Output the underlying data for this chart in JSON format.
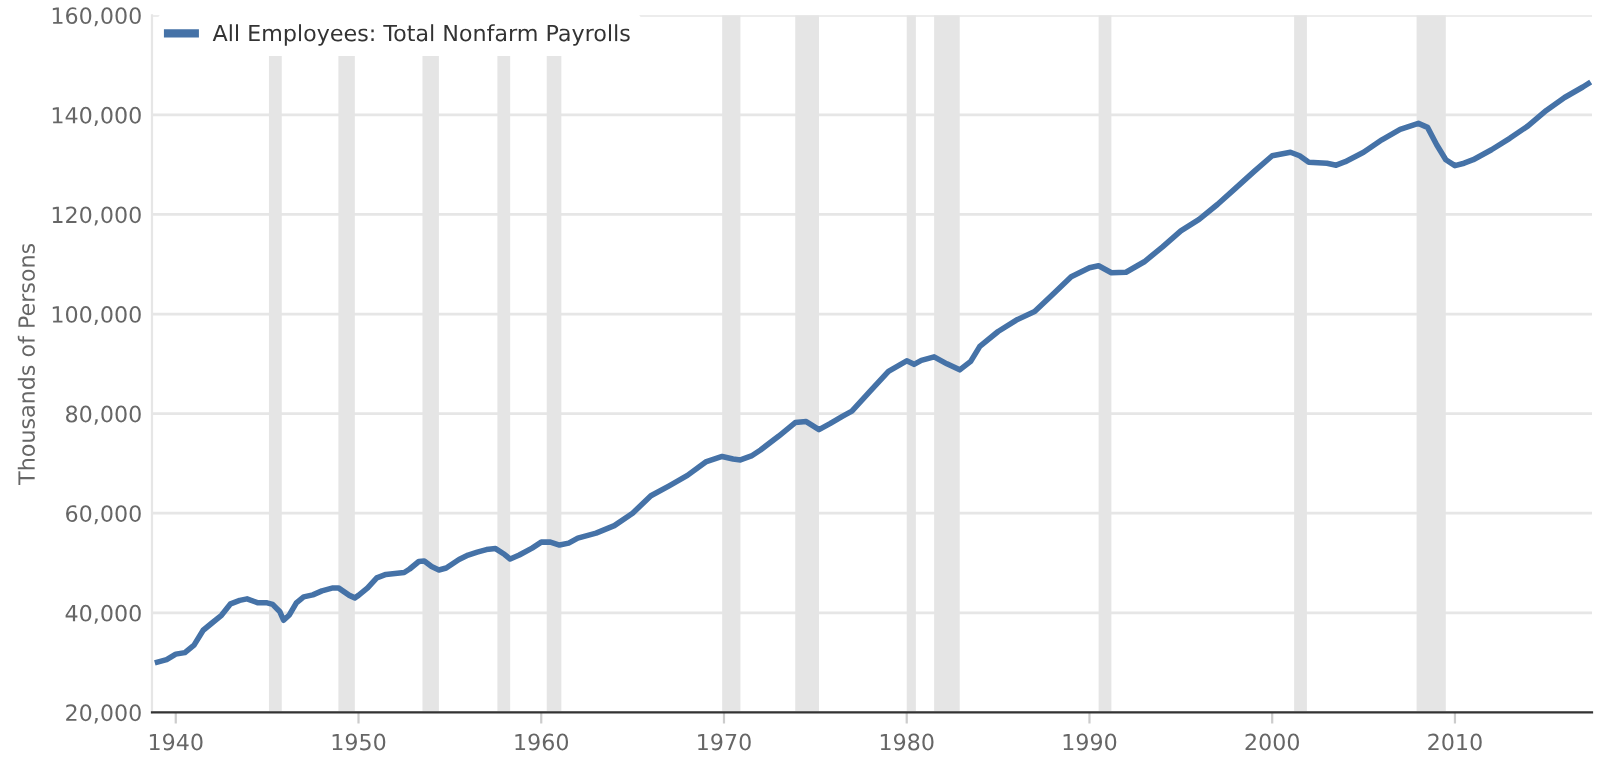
{
  "chart_data": {
    "type": "line",
    "ylabel": "Thousands of Persons",
    "xlim": [
      1938.7,
      2017.5
    ],
    "xticks": [
      1940,
      1950,
      1960,
      1970,
      1980,
      1990,
      2000,
      2010
    ],
    "ylim": [
      20000,
      160000
    ],
    "yticks": [
      {
        "value": 20000,
        "label": "20,000"
      },
      {
        "value": 40000,
        "label": "40,000"
      },
      {
        "value": 60000,
        "label": "60,000"
      },
      {
        "value": 80000,
        "label": "80,000"
      },
      {
        "value": 100000,
        "label": "100,000"
      },
      {
        "value": 120000,
        "label": "120,000"
      },
      {
        "value": 140000,
        "label": "140,000"
      },
      {
        "value": 160000,
        "label": "160,000"
      }
    ],
    "grid": "y",
    "legend": "top left",
    "marker": "none",
    "line_style": "solid",
    "bands": [
      {
        "axis": "x",
        "from": 1945.1,
        "to": 1945.8,
        "color": "#e5e5e5"
      },
      {
        "axis": "x",
        "from": 1948.9,
        "to": 1949.8,
        "color": "#e5e5e5"
      },
      {
        "axis": "x",
        "from": 1953.5,
        "to": 1954.4,
        "color": "#e5e5e5"
      },
      {
        "axis": "x",
        "from": 1957.6,
        "to": 1958.3,
        "color": "#e5e5e5"
      },
      {
        "axis": "x",
        "from": 1960.3,
        "to": 1961.1,
        "color": "#e5e5e5"
      },
      {
        "axis": "x",
        "from": 1969.9,
        "to": 1970.9,
        "color": "#e5e5e5"
      },
      {
        "axis": "x",
        "from": 1973.9,
        "to": 1975.2,
        "color": "#e5e5e5"
      },
      {
        "axis": "x",
        "from": 1980.0,
        "to": 1980.5,
        "color": "#e5e5e5"
      },
      {
        "axis": "x",
        "from": 1981.5,
        "to": 1982.9,
        "color": "#e5e5e5"
      },
      {
        "axis": "x",
        "from": 1990.5,
        "to": 1991.2,
        "color": "#e5e5e5"
      },
      {
        "axis": "x",
        "from": 2001.2,
        "to": 2001.9,
        "color": "#e5e5e5"
      },
      {
        "axis": "x",
        "from": 2007.9,
        "to": 2009.5,
        "color": "#e5e5e5"
      }
    ],
    "series": [
      {
        "name": "All Employees: Total Nonfarm Payrolls",
        "color": "#4572a7",
        "x": [
          1939.0,
          1939.5,
          1940.0,
          1940.5,
          1941.0,
          1941.5,
          1942.0,
          1942.5,
          1943.0,
          1943.5,
          1943.9,
          1944.5,
          1945.0,
          1945.3,
          1945.7,
          1945.9,
          1946.2,
          1946.6,
          1947.0,
          1947.5,
          1948.0,
          1948.6,
          1948.9,
          1949.5,
          1949.8,
          1950.0,
          1950.5,
          1951.0,
          1951.5,
          1952.0,
          1952.5,
          1952.8,
          1953.3,
          1953.6,
          1954.0,
          1954.4,
          1954.8,
          1955.5,
          1956.0,
          1956.5,
          1957.0,
          1957.5,
          1958.0,
          1958.3,
          1958.8,
          1959.5,
          1960.0,
          1960.5,
          1961.0,
          1961.5,
          1962.0,
          1963.0,
          1964.0,
          1965.0,
          1966.0,
          1967.0,
          1968.0,
          1969.0,
          1969.9,
          1970.5,
          1970.9,
          1971.5,
          1972.0,
          1973.0,
          1973.9,
          1974.5,
          1975.2,
          1975.8,
          1976.5,
          1977.0,
          1978.0,
          1979.0,
          1980.0,
          1980.4,
          1980.8,
          1981.5,
          1982.2,
          1982.9,
          1983.5,
          1984.0,
          1985.0,
          1986.0,
          1987.0,
          1988.0,
          1989.0,
          1990.0,
          1990.5,
          1991.2,
          1992.0,
          1993.0,
          1994.0,
          1995.0,
          1996.0,
          1997.0,
          1998.0,
          1999.0,
          2000.0,
          2001.0,
          2001.5,
          2002.0,
          2003.0,
          2003.5,
          2004.0,
          2005.0,
          2006.0,
          2007.0,
          2008.0,
          2008.5,
          2009.0,
          2009.5,
          2010.0,
          2010.5,
          2011.0,
          2012.0,
          2013.0,
          2014.0,
          2015.0,
          2016.0,
          2017.0,
          2017.3
        ],
        "values": [
          30100,
          30600,
          31700,
          32000,
          33500,
          36500,
          38000,
          39500,
          41800,
          42500,
          42800,
          42000,
          42000,
          41700,
          40200,
          38500,
          39500,
          42000,
          43200,
          43600,
          44400,
          45000,
          45000,
          43500,
          43000,
          43500,
          45000,
          47000,
          47700,
          47900,
          48100,
          48800,
          50300,
          50400,
          49300,
          48600,
          49000,
          50700,
          51600,
          52200,
          52700,
          52900,
          51700,
          50800,
          51600,
          53000,
          54200,
          54200,
          53600,
          54000,
          55000,
          56000,
          57500,
          60000,
          63500,
          65500,
          67600,
          70300,
          71400,
          70900,
          70700,
          71500,
          72700,
          75500,
          78200,
          78400,
          76800,
          78000,
          79500,
          80500,
          84500,
          88500,
          90600,
          89900,
          90700,
          91400,
          90000,
          88800,
          90500,
          93500,
          96500,
          98800,
          100500,
          104000,
          107500,
          109300,
          109700,
          108300,
          108400,
          110500,
          113500,
          116700,
          119000,
          122000,
          125300,
          128600,
          131800,
          132500,
          131800,
          130500,
          130300,
          129900,
          130600,
          132500,
          135000,
          137100,
          138300,
          137500,
          134000,
          131000,
          129800,
          130300,
          131000,
          133000,
          135300,
          137800,
          140900,
          143500,
          145600,
          146300
        ]
      }
    ]
  }
}
